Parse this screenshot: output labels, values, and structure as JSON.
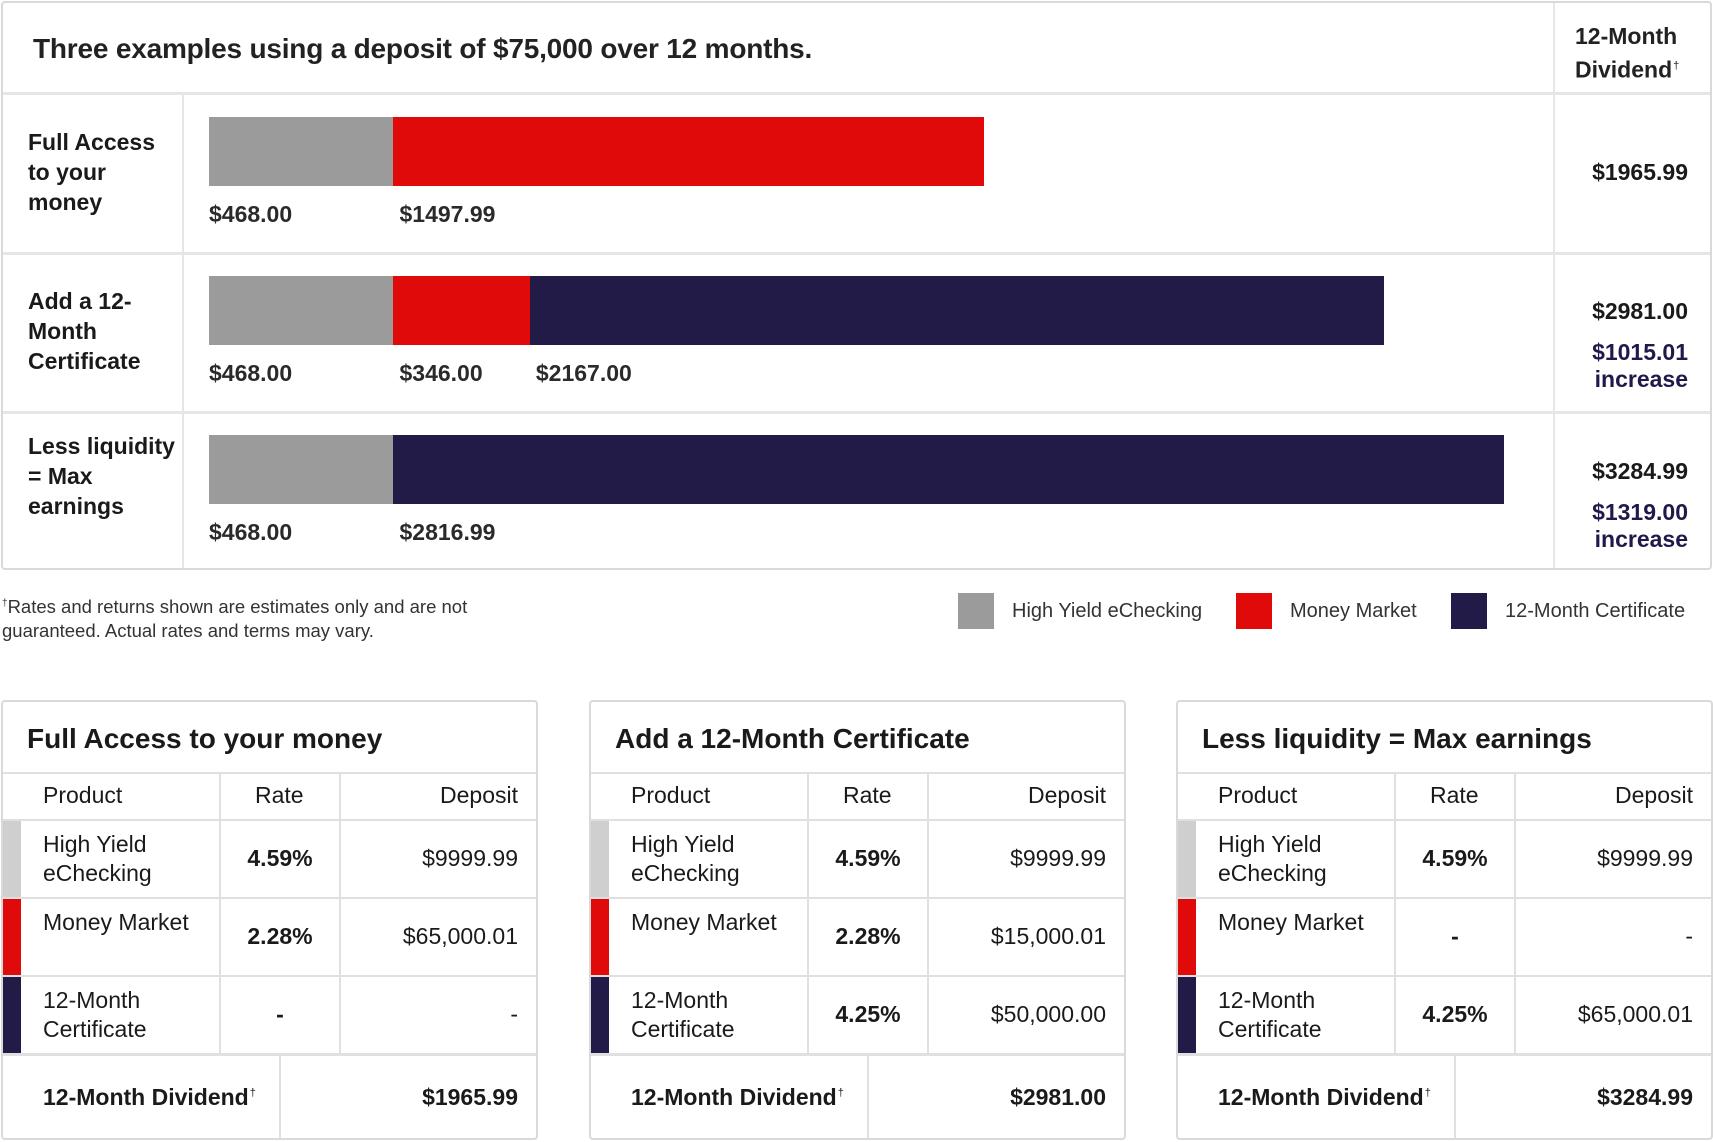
{
  "colors": {
    "high_yield": "#9b9b9b",
    "money_market": "#e10a0a",
    "certificate": "#221a47",
    "high_yield_table": "#cfcfcf"
  },
  "chart_data": {
    "type": "bar",
    "orientation": "horizontal-stacked",
    "title": "Three examples using a deposit of $75,000 over 12 months.",
    "value_column_header": "12-Month Dividend",
    "categories": [
      "Full Access to your money",
      "Add a 12-Month Certificate",
      "Less liquidity = Max earnings"
    ],
    "series": [
      {
        "name": "High Yield eChecking",
        "values": [
          468.0,
          468.0,
          468.0
        ]
      },
      {
        "name": "Money Market",
        "values": [
          1497.99,
          346.0,
          0
        ]
      },
      {
        "name": "12-Month Certificate",
        "values": [
          0,
          2167.0,
          2816.99
        ]
      }
    ],
    "segment_labels": [
      [
        "$468.00",
        "$1497.99"
      ],
      [
        "$468.00",
        "$346.00",
        "$2167.00"
      ],
      [
        "$468.00",
        "$2816.99"
      ]
    ],
    "totals": [
      "$1965.99",
      "$2981.00",
      "$3284.99"
    ],
    "increases": [
      "",
      "$1015.01",
      "$1319.00"
    ],
    "increase_word": "increase",
    "legend_position": "bottom-right",
    "grid": false
  },
  "chart": {
    "title": "Three examples using a deposit of $75,000 over 12 months.",
    "dividend_header_line1": "12-Month",
    "dividend_header_line2": "Dividend",
    "dagger": "†",
    "rows": [
      {
        "label": "Full Access to your money",
        "total": "$1965.99"
      },
      {
        "label": "Add a 12-Month Certificate",
        "total": "$2981.00",
        "increase": "$1015.01",
        "increase_word": "increase"
      },
      {
        "label": "Less liquidity = Max earnings",
        "total": "$3284.99",
        "increase": "$1319.00",
        "increase_word": "increase"
      }
    ]
  },
  "footnote": {
    "dagger": "†",
    "text": "Rates and returns shown are estimates only and are not guaranteed. Actual rates and terms may vary."
  },
  "legend": [
    {
      "label": "High Yield eChecking",
      "color": "#9b9b9b"
    },
    {
      "label": "Money Market",
      "color": "#e10a0a"
    },
    {
      "label": "12-Month Certificate",
      "color": "#221a47"
    }
  ],
  "tables": [
    {
      "title": "Full Access to your money",
      "headers": {
        "product": "Product",
        "rate": "Rate",
        "deposit": "Deposit"
      },
      "rows": [
        {
          "product": "High Yield eChecking",
          "rate": "4.59%",
          "deposit": "$9999.99"
        },
        {
          "product": "Money Market",
          "rate": "2.28%",
          "deposit": "$65,000.01"
        },
        {
          "product": "12-Month Certificate",
          "rate": "-",
          "deposit": "-"
        }
      ],
      "footer_label": "12-Month Dividend",
      "footer_value": "$1965.99"
    },
    {
      "title": "Add a 12-Month Certificate",
      "headers": {
        "product": "Product",
        "rate": "Rate",
        "deposit": "Deposit"
      },
      "rows": [
        {
          "product": "High Yield eChecking",
          "rate": "4.59%",
          "deposit": "$9999.99"
        },
        {
          "product": "Money Market",
          "rate": "2.28%",
          "deposit": "$15,000.01"
        },
        {
          "product": "12-Month Certificate",
          "rate": "4.25%",
          "deposit": "$50,000.00"
        }
      ],
      "footer_label": "12-Month Dividend",
      "footer_value": "$2981.00"
    },
    {
      "title": "Less liquidity = Max earnings",
      "headers": {
        "product": "Product",
        "rate": "Rate",
        "deposit": "Deposit"
      },
      "rows": [
        {
          "product": "High Yield eChecking",
          "rate": "4.59%",
          "deposit": "$9999.99"
        },
        {
          "product": "Money Market",
          "rate": "-",
          "deposit": "-"
        },
        {
          "product": "12-Month Certificate",
          "rate": "4.25%",
          "deposit": "$65,000.01"
        }
      ],
      "footer_label": "12-Month Dividend",
      "footer_value": "$3284.99"
    }
  ]
}
